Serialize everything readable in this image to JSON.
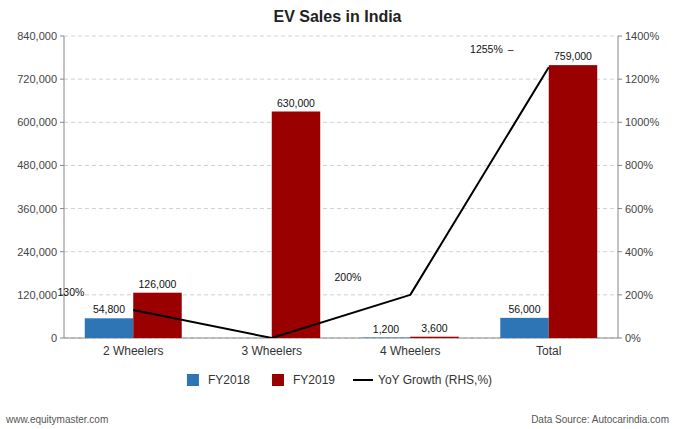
{
  "chart_data": {
    "type": "bar",
    "title": "EV Sales in India",
    "categories": [
      "2 Wheelers",
      "3 Wheelers",
      "4 Wheelers",
      "Total"
    ],
    "series": [
      {
        "name": "FY2018",
        "color": "#2E75B6",
        "values": [
          54800,
          0,
          1200,
          56000
        ],
        "value_labels": [
          "54,800",
          null,
          "1,200",
          "56,000"
        ]
      },
      {
        "name": "FY2019",
        "color": "#9B0000",
        "values": [
          126000,
          630000,
          3600,
          759000
        ],
        "value_labels": [
          "126,000",
          "630,000",
          "3,600",
          "759,000"
        ]
      },
      {
        "name": "YoY Growth (RHS,%)",
        "type": "line",
        "axis": "y2",
        "color": "#000000",
        "values": [
          130,
          0,
          200,
          1255
        ],
        "value_labels": [
          "130%",
          null,
          "200%",
          "1255%"
        ]
      }
    ],
    "ylim": [
      0,
      840000
    ],
    "yticks": [
      0,
      {
        "value": 120000,
        "label": "120,000"
      },
      {
        "value": 240000,
        "label": "240,000"
      },
      {
        "value": 360000,
        "label": "360,000"
      },
      {
        "value": 480000,
        "label": "480,000"
      },
      {
        "value": 600000,
        "label": "600,000"
      },
      {
        "value": 720000,
        "label": "720,000"
      },
      {
        "value": 840000,
        "label": "840,000"
      }
    ],
    "y2lim": [
      0,
      1400
    ],
    "y2ticks": [
      {
        "value": 0,
        "label": "0%"
      },
      {
        "value": 200,
        "label": "200%"
      },
      {
        "value": 400,
        "label": "400%"
      },
      {
        "value": 600,
        "label": "600%"
      },
      {
        "value": 800,
        "label": "800%"
      },
      {
        "value": 1000,
        "label": "1000%"
      },
      {
        "value": 1200,
        "label": "1200%"
      },
      {
        "value": 1400,
        "label": "1400%"
      }
    ],
    "grid": true,
    "data_labels": true,
    "legend": "bottom",
    "annotations": [
      "www.equitymaster.com",
      "Data Source: Autocarindia.com",
      "–"
    ]
  }
}
